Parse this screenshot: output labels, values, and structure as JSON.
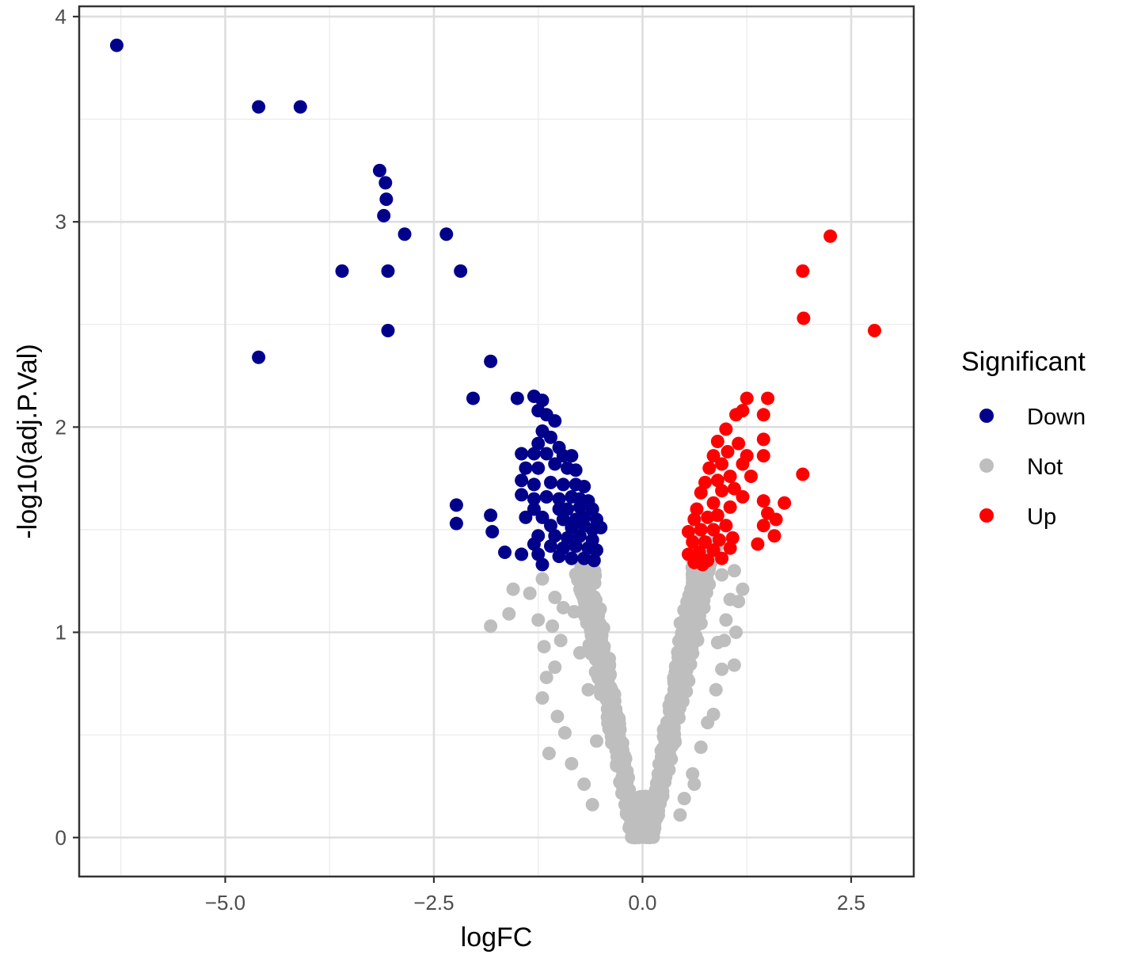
{
  "chart_data": {
    "type": "scatter",
    "title": "",
    "xlabel": "logFC",
    "ylabel": "-log10(adj.P.Val)",
    "xlim": [
      -6.75,
      3.25
    ],
    "ylim": [
      -0.19,
      4.05
    ],
    "x_ticks": [
      {
        "value": -5.0,
        "label": "−5.0"
      },
      {
        "value": -2.5,
        "label": "−2.5"
      },
      {
        "value": 0.0,
        "label": "0.0"
      },
      {
        "value": 2.5,
        "label": "2.5"
      }
    ],
    "y_ticks": [
      {
        "value": 0,
        "label": "0"
      },
      {
        "value": 1,
        "label": "1"
      },
      {
        "value": 2,
        "label": "2"
      },
      {
        "value": 3,
        "label": "3"
      },
      {
        "value": 4,
        "label": "4"
      }
    ],
    "grid": true,
    "legend": {
      "title": "Significant",
      "position": "right",
      "entries": [
        {
          "label": "Down",
          "color": "#00008b"
        },
        {
          "label": "Not",
          "color": "#bebebe"
        },
        {
          "label": "Up",
          "color": "#ff0000"
        }
      ]
    },
    "series": [
      {
        "name": "Down",
        "color": "#00008b",
        "points": [
          [
            -6.3,
            3.86
          ],
          [
            -4.6,
            3.56
          ],
          [
            -4.1,
            3.56
          ],
          [
            -3.15,
            3.25
          ],
          [
            -3.08,
            3.19
          ],
          [
            -3.07,
            3.11
          ],
          [
            -3.1,
            3.03
          ],
          [
            -2.85,
            2.94
          ],
          [
            -2.35,
            2.94
          ],
          [
            -3.6,
            2.76
          ],
          [
            -3.05,
            2.76
          ],
          [
            -2.18,
            2.76
          ],
          [
            -3.05,
            2.47
          ],
          [
            -4.6,
            2.34
          ],
          [
            -1.82,
            2.32
          ],
          [
            -2.03,
            2.14
          ],
          [
            -1.5,
            2.14
          ],
          [
            -1.3,
            2.15
          ],
          [
            -1.2,
            2.13
          ],
          [
            -1.25,
            2.08
          ],
          [
            -1.15,
            2.06
          ],
          [
            -1.05,
            2.03
          ],
          [
            -1.2,
            1.98
          ],
          [
            -1.1,
            1.95
          ],
          [
            -1.25,
            1.92
          ],
          [
            -1.0,
            1.9
          ],
          [
            -1.45,
            1.87
          ],
          [
            -1.3,
            1.87
          ],
          [
            -1.15,
            1.87
          ],
          [
            -0.95,
            1.86
          ],
          [
            -0.85,
            1.86
          ],
          [
            -1.4,
            1.8
          ],
          [
            -1.25,
            1.8
          ],
          [
            -1.05,
            1.82
          ],
          [
            -0.9,
            1.8
          ],
          [
            -0.8,
            1.79
          ],
          [
            -1.45,
            1.74
          ],
          [
            -1.3,
            1.72
          ],
          [
            -1.1,
            1.73
          ],
          [
            -0.95,
            1.72
          ],
          [
            -0.8,
            1.72
          ],
          [
            -0.7,
            1.71
          ],
          [
            -1.45,
            1.67
          ],
          [
            -1.3,
            1.65
          ],
          [
            -1.15,
            1.66
          ],
          [
            -1.0,
            1.65
          ],
          [
            -0.85,
            1.66
          ],
          [
            -0.75,
            1.65
          ],
          [
            -0.65,
            1.64
          ],
          [
            -2.23,
            1.62
          ],
          [
            -1.3,
            1.6
          ],
          [
            -1.0,
            1.6
          ],
          [
            -0.9,
            1.6
          ],
          [
            -0.75,
            1.61
          ],
          [
            -0.6,
            1.6
          ],
          [
            -1.82,
            1.57
          ],
          [
            -1.4,
            1.56
          ],
          [
            -1.2,
            1.56
          ],
          [
            -0.95,
            1.55
          ],
          [
            -0.8,
            1.55
          ],
          [
            -0.7,
            1.56
          ],
          [
            -0.55,
            1.55
          ],
          [
            -2.23,
            1.53
          ],
          [
            -1.1,
            1.52
          ],
          [
            -0.85,
            1.51
          ],
          [
            -0.7,
            1.52
          ],
          [
            -0.6,
            1.5
          ],
          [
            -0.5,
            1.51
          ],
          [
            -1.8,
            1.49
          ],
          [
            -1.25,
            1.47
          ],
          [
            -1.05,
            1.47
          ],
          [
            -0.9,
            1.46
          ],
          [
            -0.75,
            1.47
          ],
          [
            -0.6,
            1.45
          ],
          [
            -1.3,
            1.43
          ],
          [
            -1.1,
            1.42
          ],
          [
            -0.95,
            1.41
          ],
          [
            -0.8,
            1.42
          ],
          [
            -0.65,
            1.41
          ],
          [
            -0.55,
            1.4
          ],
          [
            -1.65,
            1.39
          ],
          [
            -1.45,
            1.38
          ],
          [
            -1.25,
            1.38
          ],
          [
            -1.0,
            1.37
          ],
          [
            -0.85,
            1.36
          ],
          [
            -0.7,
            1.36
          ],
          [
            -0.58,
            1.35
          ],
          [
            -1.2,
            1.33
          ]
        ]
      },
      {
        "name": "Not",
        "color": "#bebebe",
        "points": [
          [
            -1.55,
            1.21
          ],
          [
            -1.35,
            1.19
          ],
          [
            -1.2,
            1.26
          ],
          [
            -1.05,
            1.17
          ],
          [
            -0.95,
            1.12
          ],
          [
            -1.6,
            1.09
          ],
          [
            -1.25,
            1.06
          ],
          [
            -1.08,
            1.03
          ],
          [
            -1.82,
            1.03
          ],
          [
            -0.98,
            0.96
          ],
          [
            -1.18,
            0.93
          ],
          [
            -1.05,
            0.83
          ],
          [
            -1.15,
            0.78
          ],
          [
            -1.2,
            0.68
          ],
          [
            -1.02,
            0.59
          ],
          [
            -0.93,
            0.51
          ],
          [
            -1.12,
            0.41
          ],
          [
            -0.85,
            0.36
          ],
          [
            -0.7,
            0.26
          ],
          [
            -0.6,
            0.16
          ],
          [
            -0.78,
            1.28
          ],
          [
            -0.82,
            1.1
          ],
          [
            -0.75,
            0.9
          ],
          [
            -0.65,
            0.72
          ],
          [
            -0.55,
            0.47
          ],
          [
            0.8,
            1.31
          ],
          [
            0.95,
            1.28
          ],
          [
            1.1,
            1.3
          ],
          [
            1.2,
            1.21
          ],
          [
            1.05,
            1.16
          ],
          [
            1.15,
            1.15
          ],
          [
            1.0,
            1.06
          ],
          [
            1.12,
            1.0
          ],
          [
            0.98,
            0.96
          ],
          [
            1.1,
            0.84
          ],
          [
            0.95,
            0.82
          ],
          [
            0.88,
            0.72
          ],
          [
            0.85,
            0.6
          ],
          [
            0.7,
            0.44
          ],
          [
            0.6,
            0.31
          ],
          [
            0.62,
            0.26
          ],
          [
            0.5,
            0.19
          ],
          [
            0.45,
            0.11
          ],
          [
            0.9,
            0.95
          ],
          [
            0.78,
            0.56
          ]
        ]
      },
      {
        "name": "Up",
        "color": "#ff0000",
        "points": [
          [
            2.25,
            2.93
          ],
          [
            1.92,
            2.76
          ],
          [
            1.93,
            2.53
          ],
          [
            2.78,
            2.47
          ],
          [
            1.25,
            2.14
          ],
          [
            1.5,
            2.14
          ],
          [
            1.2,
            2.08
          ],
          [
            1.45,
            2.06
          ],
          [
            1.12,
            2.06
          ],
          [
            1.0,
            1.99
          ],
          [
            1.45,
            1.94
          ],
          [
            1.15,
            1.92
          ],
          [
            0.9,
            1.93
          ],
          [
            1.02,
            1.88
          ],
          [
            0.85,
            1.86
          ],
          [
            1.25,
            1.86
          ],
          [
            1.45,
            1.86
          ],
          [
            1.2,
            1.82
          ],
          [
            0.95,
            1.82
          ],
          [
            0.8,
            1.8
          ],
          [
            1.92,
            1.77
          ],
          [
            1.3,
            1.76
          ],
          [
            1.05,
            1.76
          ],
          [
            0.9,
            1.74
          ],
          [
            0.75,
            1.73
          ],
          [
            1.1,
            1.7
          ],
          [
            0.95,
            1.69
          ],
          [
            0.7,
            1.68
          ],
          [
            1.2,
            1.66
          ],
          [
            1.45,
            1.64
          ],
          [
            1.7,
            1.63
          ],
          [
            0.85,
            1.63
          ],
          [
            1.05,
            1.61
          ],
          [
            0.65,
            1.6
          ],
          [
            1.5,
            1.58
          ],
          [
            0.9,
            1.57
          ],
          [
            0.78,
            1.56
          ],
          [
            0.62,
            1.55
          ],
          [
            1.6,
            1.55
          ],
          [
            1.45,
            1.52
          ],
          [
            1.0,
            1.52
          ],
          [
            0.85,
            1.5
          ],
          [
            0.7,
            1.5
          ],
          [
            0.55,
            1.49
          ],
          [
            1.58,
            1.47
          ],
          [
            1.08,
            1.46
          ],
          [
            0.92,
            1.45
          ],
          [
            0.75,
            1.44
          ],
          [
            0.6,
            1.44
          ],
          [
            1.38,
            1.43
          ],
          [
            1.05,
            1.41
          ],
          [
            0.85,
            1.4
          ],
          [
            0.68,
            1.39
          ],
          [
            0.55,
            1.38
          ],
          [
            0.95,
            1.36
          ],
          [
            0.78,
            1.35
          ],
          [
            0.62,
            1.34
          ],
          [
            0.72,
            1.33
          ]
        ]
      }
    ]
  }
}
